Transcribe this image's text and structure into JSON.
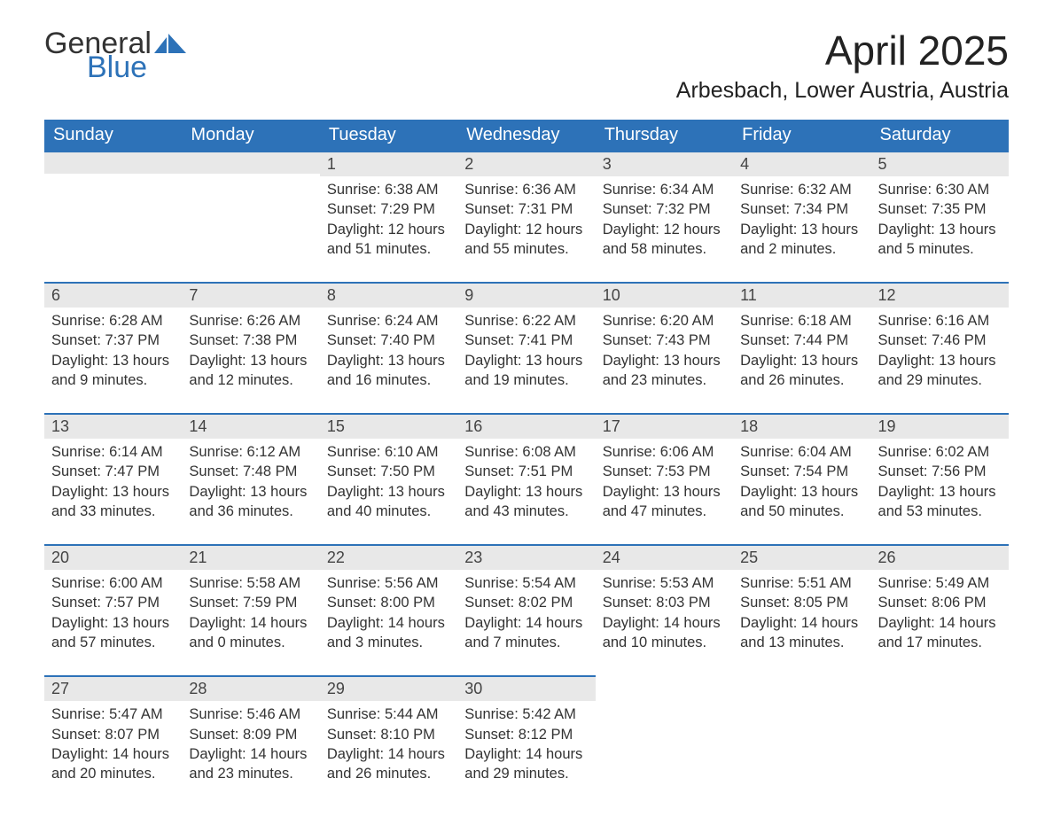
{
  "logo": {
    "text1": "General",
    "text2": "Blue"
  },
  "title": "April 2025",
  "location": "Arbesbach, Lower Austria, Austria",
  "colors": {
    "header_bg": "#2d72b8",
    "header_text": "#ffffff",
    "daynum_bg": "#e8e8e8",
    "daynum_border": "#2d72b8",
    "body_text": "#333333",
    "background": "#ffffff"
  },
  "dayHeaders": [
    "Sunday",
    "Monday",
    "Tuesday",
    "Wednesday",
    "Thursday",
    "Friday",
    "Saturday"
  ],
  "weeks": [
    [
      {
        "num": "",
        "sunrise": "",
        "sunset": "",
        "daylight": ""
      },
      {
        "num": "",
        "sunrise": "",
        "sunset": "",
        "daylight": ""
      },
      {
        "num": "1",
        "sunrise": "Sunrise: 6:38 AM",
        "sunset": "Sunset: 7:29 PM",
        "daylight": "Daylight: 12 hours and 51 minutes."
      },
      {
        "num": "2",
        "sunrise": "Sunrise: 6:36 AM",
        "sunset": "Sunset: 7:31 PM",
        "daylight": "Daylight: 12 hours and 55 minutes."
      },
      {
        "num": "3",
        "sunrise": "Sunrise: 6:34 AM",
        "sunset": "Sunset: 7:32 PM",
        "daylight": "Daylight: 12 hours and 58 minutes."
      },
      {
        "num": "4",
        "sunrise": "Sunrise: 6:32 AM",
        "sunset": "Sunset: 7:34 PM",
        "daylight": "Daylight: 13 hours and 2 minutes."
      },
      {
        "num": "5",
        "sunrise": "Sunrise: 6:30 AM",
        "sunset": "Sunset: 7:35 PM",
        "daylight": "Daylight: 13 hours and 5 minutes."
      }
    ],
    [
      {
        "num": "6",
        "sunrise": "Sunrise: 6:28 AM",
        "sunset": "Sunset: 7:37 PM",
        "daylight": "Daylight: 13 hours and 9 minutes."
      },
      {
        "num": "7",
        "sunrise": "Sunrise: 6:26 AM",
        "sunset": "Sunset: 7:38 PM",
        "daylight": "Daylight: 13 hours and 12 minutes."
      },
      {
        "num": "8",
        "sunrise": "Sunrise: 6:24 AM",
        "sunset": "Sunset: 7:40 PM",
        "daylight": "Daylight: 13 hours and 16 minutes."
      },
      {
        "num": "9",
        "sunrise": "Sunrise: 6:22 AM",
        "sunset": "Sunset: 7:41 PM",
        "daylight": "Daylight: 13 hours and 19 minutes."
      },
      {
        "num": "10",
        "sunrise": "Sunrise: 6:20 AM",
        "sunset": "Sunset: 7:43 PM",
        "daylight": "Daylight: 13 hours and 23 minutes."
      },
      {
        "num": "11",
        "sunrise": "Sunrise: 6:18 AM",
        "sunset": "Sunset: 7:44 PM",
        "daylight": "Daylight: 13 hours and 26 minutes."
      },
      {
        "num": "12",
        "sunrise": "Sunrise: 6:16 AM",
        "sunset": "Sunset: 7:46 PM",
        "daylight": "Daylight: 13 hours and 29 minutes."
      }
    ],
    [
      {
        "num": "13",
        "sunrise": "Sunrise: 6:14 AM",
        "sunset": "Sunset: 7:47 PM",
        "daylight": "Daylight: 13 hours and 33 minutes."
      },
      {
        "num": "14",
        "sunrise": "Sunrise: 6:12 AM",
        "sunset": "Sunset: 7:48 PM",
        "daylight": "Daylight: 13 hours and 36 minutes."
      },
      {
        "num": "15",
        "sunrise": "Sunrise: 6:10 AM",
        "sunset": "Sunset: 7:50 PM",
        "daylight": "Daylight: 13 hours and 40 minutes."
      },
      {
        "num": "16",
        "sunrise": "Sunrise: 6:08 AM",
        "sunset": "Sunset: 7:51 PM",
        "daylight": "Daylight: 13 hours and 43 minutes."
      },
      {
        "num": "17",
        "sunrise": "Sunrise: 6:06 AM",
        "sunset": "Sunset: 7:53 PM",
        "daylight": "Daylight: 13 hours and 47 minutes."
      },
      {
        "num": "18",
        "sunrise": "Sunrise: 6:04 AM",
        "sunset": "Sunset: 7:54 PM",
        "daylight": "Daylight: 13 hours and 50 minutes."
      },
      {
        "num": "19",
        "sunrise": "Sunrise: 6:02 AM",
        "sunset": "Sunset: 7:56 PM",
        "daylight": "Daylight: 13 hours and 53 minutes."
      }
    ],
    [
      {
        "num": "20",
        "sunrise": "Sunrise: 6:00 AM",
        "sunset": "Sunset: 7:57 PM",
        "daylight": "Daylight: 13 hours and 57 minutes."
      },
      {
        "num": "21",
        "sunrise": "Sunrise: 5:58 AM",
        "sunset": "Sunset: 7:59 PM",
        "daylight": "Daylight: 14 hours and 0 minutes."
      },
      {
        "num": "22",
        "sunrise": "Sunrise: 5:56 AM",
        "sunset": "Sunset: 8:00 PM",
        "daylight": "Daylight: 14 hours and 3 minutes."
      },
      {
        "num": "23",
        "sunrise": "Sunrise: 5:54 AM",
        "sunset": "Sunset: 8:02 PM",
        "daylight": "Daylight: 14 hours and 7 minutes."
      },
      {
        "num": "24",
        "sunrise": "Sunrise: 5:53 AM",
        "sunset": "Sunset: 8:03 PM",
        "daylight": "Daylight: 14 hours and 10 minutes."
      },
      {
        "num": "25",
        "sunrise": "Sunrise: 5:51 AM",
        "sunset": "Sunset: 8:05 PM",
        "daylight": "Daylight: 14 hours and 13 minutes."
      },
      {
        "num": "26",
        "sunrise": "Sunrise: 5:49 AM",
        "sunset": "Sunset: 8:06 PM",
        "daylight": "Daylight: 14 hours and 17 minutes."
      }
    ],
    [
      {
        "num": "27",
        "sunrise": "Sunrise: 5:47 AM",
        "sunset": "Sunset: 8:07 PM",
        "daylight": "Daylight: 14 hours and 20 minutes."
      },
      {
        "num": "28",
        "sunrise": "Sunrise: 5:46 AM",
        "sunset": "Sunset: 8:09 PM",
        "daylight": "Daylight: 14 hours and 23 minutes."
      },
      {
        "num": "29",
        "sunrise": "Sunrise: 5:44 AM",
        "sunset": "Sunset: 8:10 PM",
        "daylight": "Daylight: 14 hours and 26 minutes."
      },
      {
        "num": "30",
        "sunrise": "Sunrise: 5:42 AM",
        "sunset": "Sunset: 8:12 PM",
        "daylight": "Daylight: 14 hours and 29 minutes."
      },
      {
        "num": "",
        "sunrise": "",
        "sunset": "",
        "daylight": ""
      },
      {
        "num": "",
        "sunrise": "",
        "sunset": "",
        "daylight": ""
      },
      {
        "num": "",
        "sunrise": "",
        "sunset": "",
        "daylight": ""
      }
    ]
  ]
}
